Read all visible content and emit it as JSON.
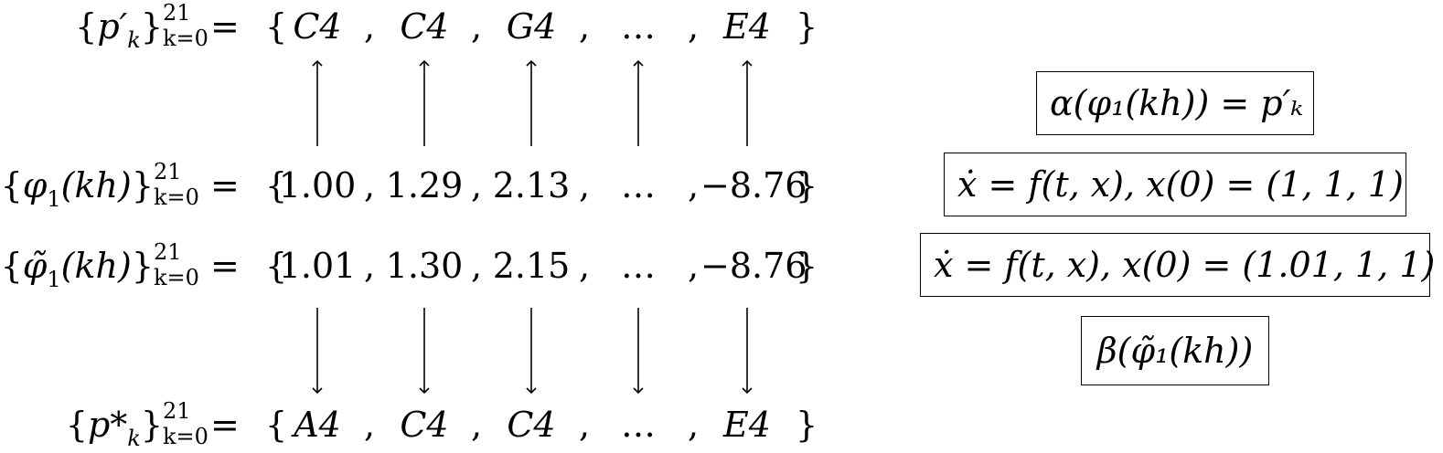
{
  "rows": {
    "top": {
      "set": "p′",
      "index": "k",
      "upper": "21",
      "lower": "k=0",
      "eq": "=",
      "open": "{",
      "close": "}",
      "items": [
        "C4",
        "C4",
        "G4",
        "…",
        "E4"
      ]
    },
    "phi": {
      "set": "φ",
      "sub1": "1",
      "arg": "(kh)",
      "upper": "21",
      "lower": "k=0",
      "eq": "=",
      "open": "{",
      "close": "}",
      "items": [
        "1.00",
        "1.29",
        "2.13",
        "…",
        "−8.76"
      ]
    },
    "phit": {
      "set": "φ̃",
      "sub1": "1",
      "arg": "(kh)",
      "upper": "21",
      "lower": "k=0",
      "eq": "=",
      "open": "{",
      "close": "}",
      "items": [
        "1.01",
        "1.30",
        "2.15",
        "…",
        "−8.76"
      ]
    },
    "bottom": {
      "set": "p*",
      "index": "k",
      "upper": "21",
      "lower": "k=0",
      "eq": "=",
      "open": "{",
      "close": "}",
      "items": [
        "A4",
        "C4",
        "C4",
        "…",
        "E4"
      ]
    }
  },
  "separator": ",",
  "boxes": {
    "alpha": "α(φ₁(kh)) = p′ₖ",
    "ode1": "ẋ = f(t, x),  x(0) = (1, 1, 1)",
    "ode2": "ẋ = f(t, x),  x(0) = (1.01, 1, 1)",
    "beta": "β(φ̃₁(kh))"
  }
}
